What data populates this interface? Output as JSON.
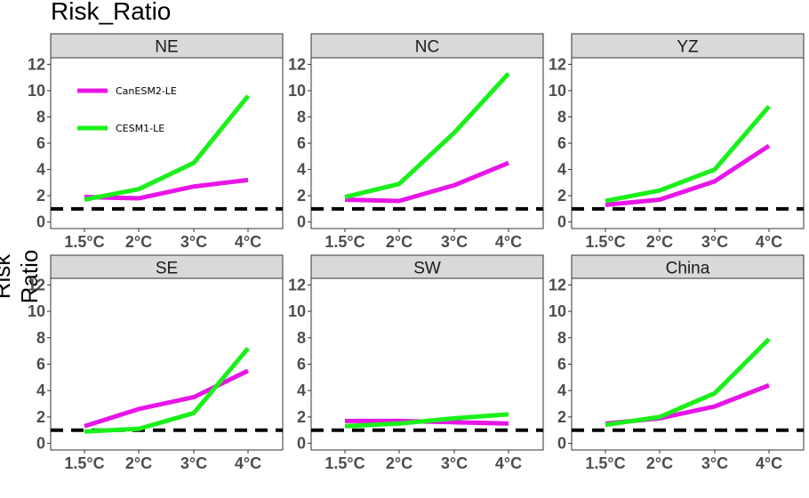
{
  "title": "Risk_Ratio",
  "ylabel": "Risk Ratio",
  "colors": {
    "CanESM2-LE": "#e815e8",
    "CESM1-LE": "#1af01a",
    "reference": "#000000",
    "strip_bg": "#d9d9d9",
    "panel_border": "#333333"
  },
  "chart_data": {
    "type": "line",
    "categories": [
      "1.5°C",
      "2°C",
      "3°C",
      "4°C"
    ],
    "ylim": [
      -0.5,
      12.5
    ],
    "yticks": [
      0,
      2,
      4,
      6,
      8,
      10,
      12
    ],
    "reference_line": 1,
    "grid": false,
    "legend": {
      "location": "inside NE panel, top-left",
      "entries": [
        "CanESM2-LE",
        "CESM1-LE"
      ]
    },
    "panels": [
      {
        "name": "NE",
        "series": [
          {
            "name": "CanESM2-LE",
            "values": [
              1.9,
              1.8,
              2.7,
              3.2
            ]
          },
          {
            "name": "CESM1-LE",
            "values": [
              1.7,
              2.5,
              4.5,
              9.6
            ]
          }
        ]
      },
      {
        "name": "NC",
        "series": [
          {
            "name": "CanESM2-LE",
            "values": [
              1.7,
              1.6,
              2.8,
              4.5
            ]
          },
          {
            "name": "CESM1-LE",
            "values": [
              1.9,
              2.9,
              6.8,
              11.3
            ]
          }
        ]
      },
      {
        "name": "YZ",
        "series": [
          {
            "name": "CanESM2-LE",
            "values": [
              1.3,
              1.7,
              3.1,
              5.8
            ]
          },
          {
            "name": "CESM1-LE",
            "values": [
              1.6,
              2.4,
              4.0,
              8.8
            ]
          }
        ]
      },
      {
        "name": "SE",
        "series": [
          {
            "name": "CanESM2-LE",
            "values": [
              1.3,
              2.6,
              3.5,
              5.5
            ]
          },
          {
            "name": "CESM1-LE",
            "values": [
              0.9,
              1.1,
              2.3,
              7.2
            ]
          }
        ]
      },
      {
        "name": "SW",
        "series": [
          {
            "name": "CanESM2-LE",
            "values": [
              1.7,
              1.7,
              1.6,
              1.5
            ]
          },
          {
            "name": "CESM1-LE",
            "values": [
              1.3,
              1.5,
              1.9,
              2.2
            ]
          }
        ]
      },
      {
        "name": "China",
        "series": [
          {
            "name": "CanESM2-LE",
            "values": [
              1.5,
              1.9,
              2.8,
              4.4
            ]
          },
          {
            "name": "CESM1-LE",
            "values": [
              1.4,
              2.0,
              3.8,
              7.9
            ]
          }
        ]
      }
    ]
  }
}
